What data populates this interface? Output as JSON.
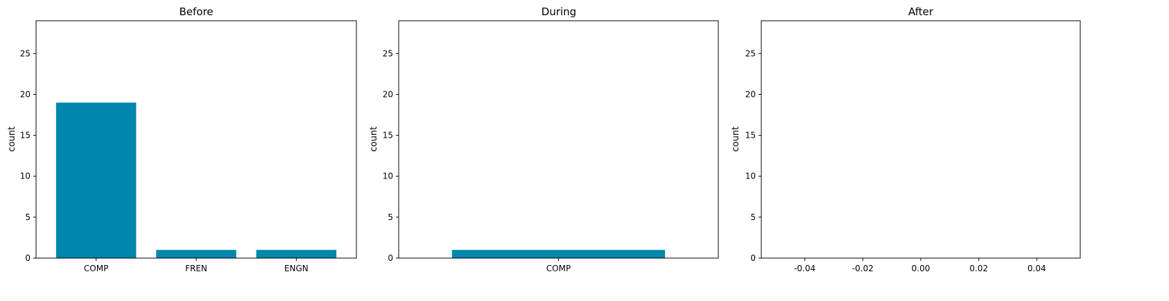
{
  "chart_data": [
    {
      "type": "bar",
      "title": "Before",
      "ylabel": "count",
      "xlabel": "",
      "categories": [
        "COMP",
        "FREN",
        "ENGN"
      ],
      "values": [
        19,
        1,
        1
      ],
      "ylim": [
        0,
        29
      ],
      "yticks": [
        0,
        5,
        10,
        15,
        20,
        25
      ],
      "bar_color": "#0087ad",
      "grid": false
    },
    {
      "type": "bar",
      "title": "During",
      "ylabel": "count",
      "xlabel": "",
      "categories": [
        "COMP"
      ],
      "values": [
        1
      ],
      "ylim": [
        0,
        29
      ],
      "yticks": [
        0,
        5,
        10,
        15,
        20,
        25
      ],
      "bar_color": "#0087ad",
      "grid": false
    },
    {
      "type": "bar",
      "title": "After",
      "ylabel": "count",
      "xlabel": "",
      "categories": [],
      "values": [],
      "ylim": [
        0,
        29
      ],
      "xlim": [
        -0.055,
        0.055
      ],
      "yticks": [
        0,
        5,
        10,
        15,
        20,
        25
      ],
      "xticks": [
        "-0.04",
        "-0.02",
        "0.00",
        "0.02",
        "0.04"
      ],
      "xtick_values": [
        -0.04,
        -0.02,
        0.0,
        0.02,
        0.04
      ],
      "bar_color": "#0087ad",
      "grid": false
    }
  ]
}
